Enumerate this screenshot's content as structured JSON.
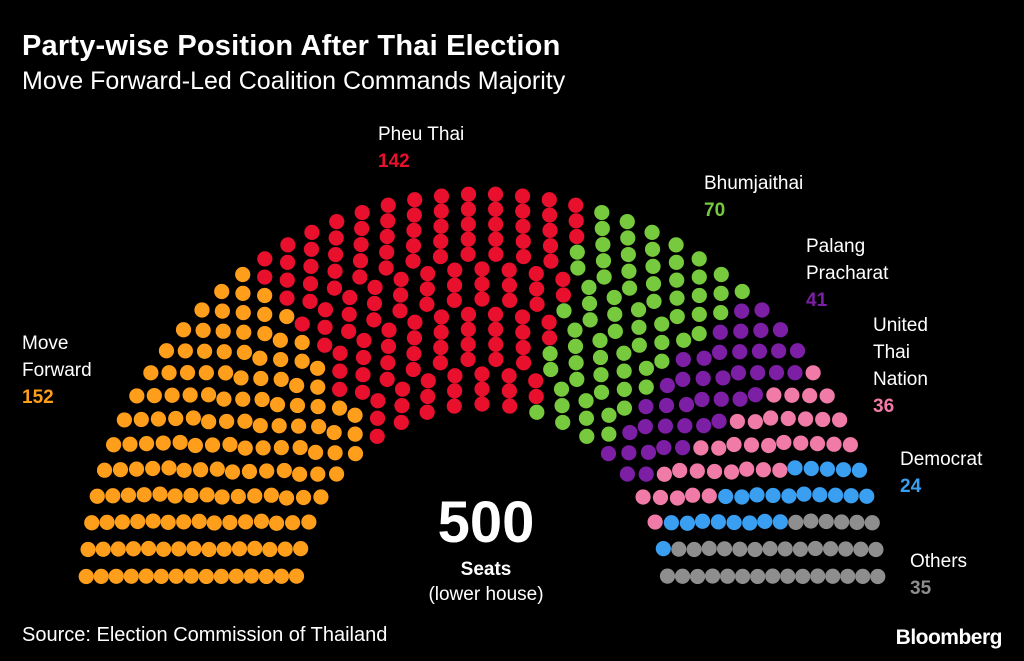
{
  "header": {
    "title": "Party-wise Position After Thai Election",
    "subtitle": "Move Forward-Led Coalition Commands Majority"
  },
  "chart_data": {
    "type": "parliament",
    "title": "Party-wise Position After Thai Election",
    "subtitle": "Move Forward-Led Coalition Commands Majority",
    "total": "500",
    "total_label": "Seats",
    "total_note": "(lower house)",
    "parties": [
      {
        "name": "Move Forward",
        "seats": 152,
        "color": "#ff9e1b"
      },
      {
        "name": "Pheu Thai",
        "seats": 142,
        "color": "#e8102d"
      },
      {
        "name": "Bhumjaithai",
        "seats": 70,
        "color": "#77c93d"
      },
      {
        "name": "Palang Pracharat",
        "seats": 41,
        "color": "#7c1fa5"
      },
      {
        "name": "United Thai Nation",
        "seats": 36,
        "color": "#f07ba6"
      },
      {
        "name": "Democrat",
        "seats": 24,
        "color": "#3a9ff0"
      },
      {
        "name": "Others",
        "seats": 35,
        "color": "#8e8e8e"
      }
    ],
    "labels": {
      "move_forward": {
        "line1": "Move",
        "line2": "Forward",
        "count": "152"
      },
      "pheu_thai": {
        "line1": "Pheu Thai",
        "count": "142"
      },
      "bhumjaithai": {
        "line1": "Bhumjaithai",
        "count": "70"
      },
      "palang": {
        "line1": "Palang",
        "line2": "Pracharat",
        "count": "41"
      },
      "utn": {
        "line1": "United",
        "line2": "Thai",
        "line3": "Nation",
        "count": "36"
      },
      "democrat": {
        "line1": "Democrat",
        "count": "24"
      },
      "others": {
        "line1": "Others",
        "count": "35"
      }
    }
  },
  "footer": {
    "source": "Source: Election Commission of Thailand",
    "brand": "Bloomberg"
  }
}
